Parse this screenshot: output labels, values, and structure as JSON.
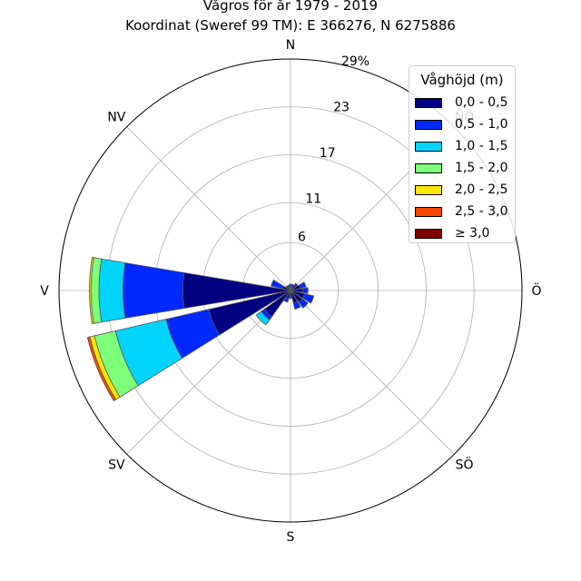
{
  "chart_data": {
    "type": "windrose",
    "title": "Vågros för år 1979 - 2019",
    "subtitle": "Koordinat (Sweref 99 TM): E 366276, N 6275886",
    "direction_labels": [
      "N",
      "NV",
      "V",
      "SV",
      "S",
      "SÖ",
      "Ö",
      "NÖ"
    ],
    "radial_ticks": [
      "6",
      "11",
      "17",
      "23",
      "29%"
    ],
    "radial_max": 29,
    "legend_title": "Våghöjd (m)",
    "legend_position": "top-right",
    "bins": [
      {
        "label": "0,0 - 0,5",
        "color": "#000080"
      },
      {
        "label": "0,5 - 1,0",
        "color": "#0028ff"
      },
      {
        "label": "1,0 - 1,5",
        "color": "#00d4ff"
      },
      {
        "label": "1,5 - 2,0",
        "color": "#7dff7a"
      },
      {
        "label": "2,0 - 2,5",
        "color": "#ffe600"
      },
      {
        "label": "2,5 - 3,0",
        "color": "#ff4500"
      },
      {
        "label": "≥ 3,0",
        "color": "#800000"
      }
    ],
    "sectors": [
      {
        "direction_deg": 0,
        "values": [
          0.5,
          0.3,
          0,
          0,
          0,
          0,
          0
        ]
      },
      {
        "direction_deg": 22.5,
        "values": [
          0.4,
          0.4,
          0,
          0,
          0,
          0,
          0
        ]
      },
      {
        "direction_deg": 45,
        "values": [
          0.8,
          0.3,
          0,
          0,
          0,
          0,
          0
        ]
      },
      {
        "direction_deg": 67.5,
        "values": [
          1.3,
          0.7,
          0,
          0,
          0,
          0,
          0
        ]
      },
      {
        "direction_deg": 90,
        "values": [
          1.5,
          0.7,
          0,
          0,
          0,
          0,
          0
        ]
      },
      {
        "direction_deg": 112.5,
        "values": [
          1.8,
          1.2,
          0,
          0,
          0,
          0,
          0
        ]
      },
      {
        "direction_deg": 135,
        "values": [
          1.8,
          0.9,
          0,
          0,
          0,
          0,
          0
        ]
      },
      {
        "direction_deg": 157.5,
        "values": [
          1.6,
          0.8,
          0,
          0,
          0,
          0,
          0
        ]
      },
      {
        "direction_deg": 180,
        "values": [
          0.7,
          0.3,
          0,
          0,
          0,
          0,
          0
        ]
      },
      {
        "direction_deg": 202.5,
        "values": [
          1.0,
          0.5,
          0,
          0,
          0,
          0,
          0
        ]
      },
      {
        "direction_deg": 225,
        "values": [
          4.0,
          0.5,
          0.8,
          0,
          0,
          0,
          0
        ]
      },
      {
        "direction_deg": 247.5,
        "values": [
          10.5,
          5.5,
          6.5,
          2.7,
          0.6,
          0.3,
          0
        ]
      },
      {
        "direction_deg": 270,
        "values": [
          13.5,
          7.5,
          3.0,
          1.0,
          0.2,
          0,
          0
        ]
      },
      {
        "direction_deg": 292.5,
        "values": [
          1.0,
          1.5,
          0,
          0,
          0,
          0,
          0
        ]
      },
      {
        "direction_deg": 315,
        "values": [
          0.5,
          0.2,
          0,
          0,
          0,
          0,
          0
        ]
      },
      {
        "direction_deg": 337.5,
        "values": [
          0.4,
          0.3,
          0,
          0,
          0,
          0,
          0
        ]
      }
    ]
  }
}
